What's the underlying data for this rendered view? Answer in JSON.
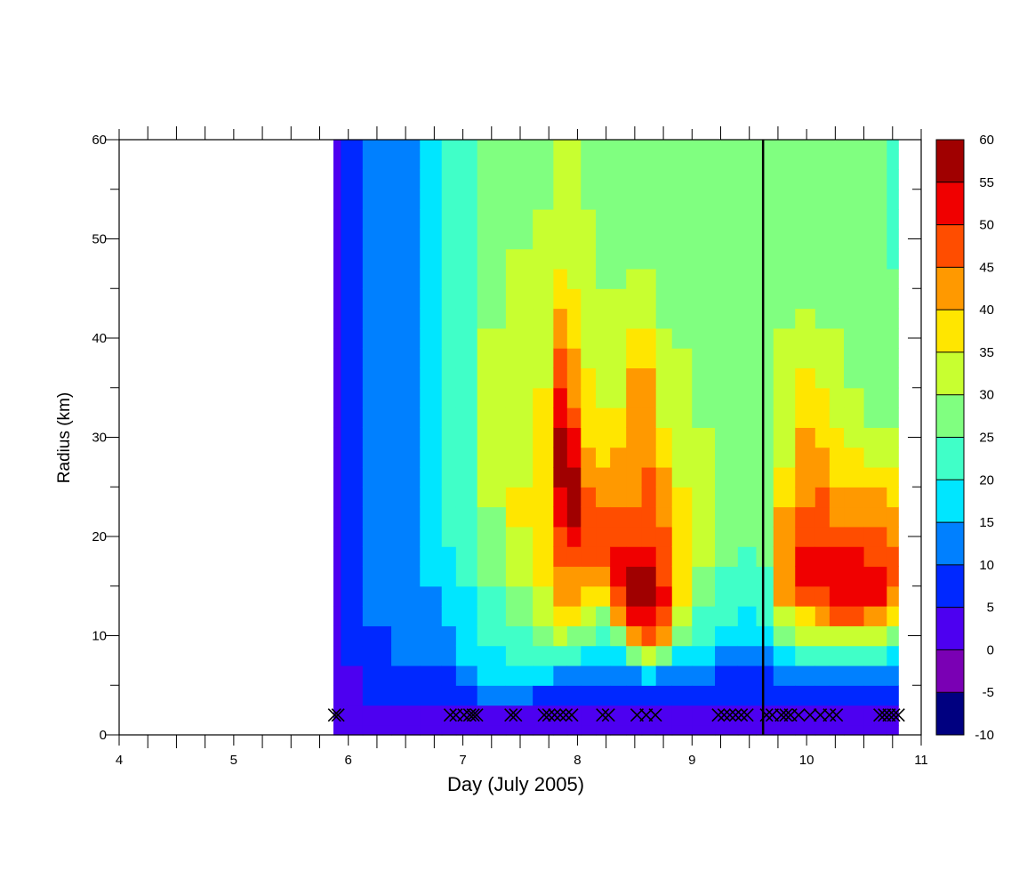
{
  "chart_data": {
    "type": "heatmap",
    "subtype": "filled-contour",
    "title": "",
    "xlabel": "Day (July 2005)",
    "ylabel": "Radius (km)",
    "xlim": [
      4,
      11
    ],
    "ylim": [
      0,
      60
    ],
    "x_ticks": [
      4,
      5,
      6,
      7,
      8,
      9,
      10,
      11
    ],
    "y_ticks": [
      0,
      10,
      20,
      30,
      40,
      50,
      60
    ],
    "x_minor_step": 0.25,
    "y_minor_step": 5,
    "data_extent_x": [
      5.87,
      10.8
    ],
    "colorbar": {
      "levels": [
        -10,
        -5,
        0,
        5,
        10,
        15,
        20,
        25,
        30,
        35,
        40,
        45,
        50,
        55,
        60
      ],
      "colors": [
        "#000080",
        "#7a00b4",
        "#4d00f0",
        "#0028ff",
        "#0080ff",
        "#00e6ff",
        "#40ffc8",
        "#80ff80",
        "#c8ff30",
        "#ffe600",
        "#ff9900",
        "#ff4d00",
        "#f00000",
        "#a00000"
      ]
    },
    "vertical_line_x": 9.62,
    "observation_markers": {
      "symbol": "X",
      "y": 2,
      "x": [
        5.88,
        5.91,
        6.89,
        6.94,
        7.01,
        7.06,
        7.09,
        7.12,
        7.42,
        7.46,
        7.71,
        7.75,
        7.8,
        7.85,
        7.9,
        7.95,
        8.22,
        8.27,
        8.52,
        8.6,
        8.68,
        9.23,
        9.28,
        9.33,
        9.38,
        9.43,
        9.48,
        9.65,
        9.7,
        9.78,
        9.82,
        9.86,
        9.93,
        10.03,
        10.12,
        10.2,
        10.26,
        10.64,
        10.68,
        10.72,
        10.76,
        10.8
      ]
    },
    "field_grid": {
      "description": "Approximate tangential wind field (values per grid cell, contour levels above)",
      "x": [
        5.87,
        6.0,
        6.25,
        6.5,
        6.75,
        6.88,
        7.0,
        7.25,
        7.5,
        7.72,
        7.86,
        7.96,
        8.1,
        8.22,
        8.35,
        8.5,
        8.62,
        8.75,
        8.9,
        9.1,
        9.3,
        9.5,
        9.62,
        9.8,
        10.0,
        10.15,
        10.25,
        10.4,
        10.6,
        10.8
      ],
      "y": [
        0,
        2,
        4,
        6,
        8,
        10,
        12,
        14,
        16,
        18,
        20,
        22,
        24,
        26,
        28,
        30,
        32,
        34,
        36,
        38,
        40,
        42,
        44,
        46,
        48,
        50,
        52,
        54,
        56,
        58,
        60
      ],
      "values": [
        [
          1,
          1,
          2,
          2,
          2,
          2,
          2,
          2,
          2,
          2,
          2,
          2,
          2,
          2,
          2,
          2,
          2,
          2,
          2,
          2,
          2,
          2,
          2,
          2,
          2,
          2,
          2,
          2,
          2,
          2,
          2
        ],
        [
          1,
          2,
          3,
          4,
          6,
          7,
          8,
          8,
          9,
          9,
          9,
          9,
          9,
          9,
          9,
          9,
          9,
          9,
          9,
          9,
          9,
          9,
          9,
          9,
          9,
          9,
          8,
          8,
          8,
          8,
          8
        ],
        [
          1,
          3,
          5,
          7,
          8,
          9,
          10,
          11,
          11,
          12,
          12,
          12,
          12,
          12,
          12,
          12,
          12,
          12,
          12,
          12,
          12,
          12,
          12,
          12,
          12,
          12,
          12,
          12,
          12,
          12,
          12
        ],
        [
          1,
          3,
          6,
          8,
          10,
          11,
          12,
          13,
          13,
          13,
          14,
          14,
          14,
          14,
          14,
          14,
          14,
          14,
          14,
          14,
          14,
          14,
          14,
          14,
          14,
          14,
          14,
          14,
          14,
          14,
          14
        ],
        [
          1,
          3,
          6,
          8,
          10,
          12,
          13,
          14,
          15,
          16,
          16,
          16,
          16,
          17,
          17,
          17,
          17,
          17,
          17,
          17,
          17,
          17,
          17,
          17,
          17,
          17,
          17,
          17,
          17,
          17,
          17
        ],
        [
          1,
          3,
          7,
          9,
          12,
          14,
          16,
          17,
          18,
          19,
          20,
          20,
          21,
          21,
          21,
          21,
          21,
          21,
          21,
          21,
          21,
          21,
          21,
          21,
          21,
          21,
          21,
          21,
          21,
          21,
          21
        ],
        [
          1,
          4,
          9,
          14,
          16,
          17,
          18,
          19,
          20,
          21,
          22,
          22,
          23,
          23,
          24,
          24,
          24,
          24,
          24,
          24,
          24,
          24,
          24,
          24,
          24,
          24,
          24,
          24,
          24,
          24,
          24
        ],
        [
          1,
          4,
          10,
          15,
          18,
          20,
          21,
          23,
          25,
          27,
          28,
          29,
          30,
          30,
          30,
          30,
          30,
          30,
          30,
          30,
          30,
          29,
          28,
          27,
          26,
          26,
          26,
          26,
          26,
          26,
          26
        ],
        [
          1,
          4,
          10,
          16,
          20,
          23,
          26,
          29,
          31,
          33,
          34,
          35,
          35,
          34,
          33,
          32,
          32,
          32,
          32,
          32,
          32,
          32,
          32,
          31,
          30,
          29,
          28,
          28,
          28,
          28,
          28
        ],
        [
          1,
          4,
          9,
          16,
          22,
          27,
          31,
          34,
          36,
          37,
          38,
          39,
          39,
          38,
          37,
          36,
          36,
          35,
          34,
          33,
          32,
          32,
          32,
          32,
          31,
          30,
          30,
          29,
          29,
          29,
          29
        ],
        [
          2,
          4,
          8,
          14,
          21,
          30,
          37,
          40,
          44,
          46,
          49,
          51,
          53,
          56,
          56,
          55,
          52,
          50,
          48,
          46,
          43,
          40,
          37,
          35,
          33,
          32,
          31,
          31,
          31,
          31,
          31
        ],
        [
          2,
          4,
          8,
          12,
          20,
          28,
          36,
          40,
          42,
          47,
          51,
          55,
          57,
          56,
          53,
          50,
          46,
          43,
          42,
          41,
          39,
          37,
          35,
          34,
          33,
          32,
          31,
          31,
          31,
          31,
          31
        ],
        [
          2,
          4,
          8,
          12,
          18,
          25,
          33,
          39,
          43,
          47,
          49,
          49,
          46,
          44,
          41,
          39,
          37,
          36,
          35,
          34,
          33,
          32,
          31,
          30,
          30,
          30,
          30,
          29,
          29,
          29,
          29
        ],
        [
          2,
          4,
          8,
          12,
          17,
          22,
          29,
          36,
          43,
          46,
          47,
          45,
          43,
          40,
          38,
          36,
          35,
          33,
          32,
          31,
          30,
          30,
          30,
          29,
          29,
          29,
          29,
          29,
          29,
          29,
          29
        ],
        [
          2,
          4,
          8,
          12,
          19,
          28,
          40,
          48,
          51,
          50,
          47,
          45,
          44,
          42,
          40,
          38,
          36,
          34,
          33,
          32,
          31,
          30,
          30,
          29,
          29,
          29,
          29,
          29,
          29,
          29,
          29
        ],
        [
          2,
          4,
          8,
          14,
          28,
          42,
          51,
          56,
          55,
          50,
          47,
          45,
          44,
          43,
          42,
          41,
          41,
          40,
          40,
          39,
          37,
          34,
          31,
          30,
          29,
          29,
          29,
          29,
          29,
          29,
          29
        ],
        [
          2,
          4,
          8,
          15,
          30,
          45,
          54,
          58,
          55,
          51,
          48,
          46,
          45,
          45,
          44,
          44,
          44,
          44,
          42,
          39,
          36,
          33,
          31,
          30,
          29,
          29,
          29,
          29,
          29,
          29,
          29
        ],
        [
          2,
          4,
          8,
          13,
          25,
          40,
          48,
          51,
          49,
          47,
          45,
          44,
          43,
          41,
          39,
          36,
          34,
          32,
          31,
          30,
          30,
          29,
          29,
          29,
          29,
          28,
          28,
          28,
          28,
          28,
          28
        ],
        [
          2,
          4,
          7,
          11,
          18,
          27,
          33,
          36,
          37,
          37,
          37,
          36,
          35,
          34,
          33,
          32,
          31,
          31,
          30,
          30,
          29,
          29,
          29,
          29,
          28,
          28,
          28,
          28,
          28,
          28,
          28
        ],
        [
          2,
          4,
          7,
          10,
          15,
          20,
          24,
          27,
          29,
          30,
          30,
          30,
          30,
          30,
          30,
          30,
          29,
          29,
          29,
          29,
          28,
          28,
          28,
          28,
          28,
          28,
          28,
          28,
          28,
          28,
          28
        ],
        [
          2,
          4,
          7,
          9,
          13,
          17,
          20,
          22,
          24,
          25,
          26,
          27,
          27,
          27,
          27,
          27,
          27,
          27,
          27,
          27,
          27,
          27,
          27,
          27,
          27,
          27,
          27,
          27,
          27,
          27,
          27
        ],
        [
          2,
          3,
          5,
          8,
          12,
          16,
          19,
          21,
          23,
          24,
          25,
          26,
          27,
          27,
          27,
          27,
          27,
          27,
          27,
          27,
          27,
          27,
          27,
          27,
          27,
          27,
          27,
          27,
          27,
          27,
          27
        ],
        [
          2,
          3,
          5,
          9,
          14,
          18,
          20,
          22,
          24,
          25,
          26,
          26,
          27,
          27,
          27,
          27,
          27,
          27,
          27,
          27,
          27,
          27,
          27,
          27,
          27,
          27,
          27,
          27,
          27,
          27,
          27
        ],
        [
          2,
          3,
          6,
          10,
          18,
          26,
          34,
          40,
          43,
          44,
          43,
          41,
          38,
          35,
          33,
          32,
          31,
          31,
          30,
          30,
          30,
          29,
          29,
          28,
          28,
          28,
          28,
          28,
          28,
          28,
          28
        ],
        [
          2,
          3,
          6,
          11,
          21,
          30,
          38,
          47,
          51,
          50,
          48,
          46,
          44,
          43,
          42,
          41,
          39,
          37,
          35,
          33,
          31,
          30,
          29,
          29,
          28,
          28,
          28,
          28,
          28,
          28,
          28
        ],
        [
          2,
          3,
          6,
          11,
          21,
          31,
          41,
          49,
          52,
          51,
          49,
          47,
          45,
          43,
          41,
          39,
          37,
          35,
          33,
          31,
          30,
          29,
          29,
          29,
          28,
          28,
          28,
          28,
          28,
          28,
          28
        ],
        [
          2,
          3,
          5,
          11,
          20,
          34,
          49,
          54,
          52,
          50,
          48,
          44,
          41,
          39,
          37,
          35,
          33,
          32,
          31,
          30,
          30,
          29,
          29,
          29,
          28,
          28,
          28,
          28,
          28,
          28,
          28
        ],
        [
          2,
          3,
          5,
          11,
          21,
          34,
          45,
          52,
          52,
          50,
          47,
          44,
          41,
          38,
          35,
          33,
          31,
          30,
          29,
          29,
          29,
          28,
          28,
          28,
          28,
          28,
          27,
          27,
          27,
          27,
          27
        ],
        [
          2,
          3,
          5,
          11,
          20,
          31,
          43,
          50,
          51,
          49,
          46,
          43,
          40,
          37,
          34,
          31,
          29,
          28,
          27,
          27,
          26,
          26,
          26,
          26,
          26,
          26,
          26,
          26,
          26,
          26,
          26
        ],
        [
          2,
          3,
          5,
          11,
          17,
          27,
          37,
          44,
          46,
          45,
          43,
          41,
          38,
          35,
          32,
          30,
          28,
          27,
          26,
          26,
          25,
          25,
          25,
          25,
          24,
          24,
          24,
          24,
          24,
          24,
          24
        ]
      ]
    }
  }
}
